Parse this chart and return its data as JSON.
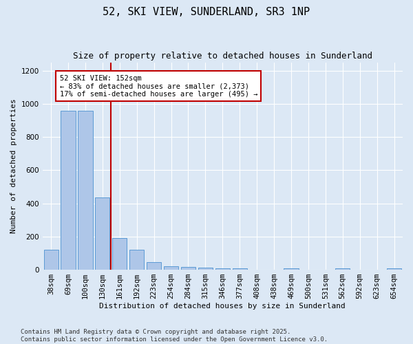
{
  "title": "52, SKI VIEW, SUNDERLAND, SR3 1NP",
  "subtitle": "Size of property relative to detached houses in Sunderland",
  "xlabel": "Distribution of detached houses by size in Sunderland",
  "ylabel": "Number of detached properties",
  "categories": [
    "38sqm",
    "69sqm",
    "100sqm",
    "130sqm",
    "161sqm",
    "192sqm",
    "223sqm",
    "254sqm",
    "284sqm",
    "315sqm",
    "346sqm",
    "377sqm",
    "408sqm",
    "438sqm",
    "469sqm",
    "500sqm",
    "531sqm",
    "562sqm",
    "592sqm",
    "623sqm",
    "654sqm"
  ],
  "values": [
    120,
    960,
    960,
    435,
    190,
    120,
    45,
    20,
    18,
    13,
    10,
    10,
    0,
    0,
    8,
    0,
    0,
    8,
    0,
    0,
    8
  ],
  "bar_color": "#aec6e8",
  "bar_edge_color": "#5b9bd5",
  "vline_color": "#c00000",
  "vline_index": 3.5,
  "annotation_text": "52 SKI VIEW: 152sqm\n← 83% of detached houses are smaller (2,373)\n17% of semi-detached houses are larger (495) →",
  "annotation_box_color": "#ffffff",
  "annotation_box_edge_color": "#c00000",
  "ylim": [
    0,
    1250
  ],
  "yticks": [
    0,
    200,
    400,
    600,
    800,
    1000,
    1200
  ],
  "background_color": "#dce8f5",
  "footer_text": "Contains HM Land Registry data © Crown copyright and database right 2025.\nContains public sector information licensed under the Open Government Licence v3.0.",
  "title_fontsize": 11,
  "subtitle_fontsize": 9,
  "axis_label_fontsize": 8,
  "tick_fontsize": 7.5,
  "annotation_fontsize": 7.5,
  "footer_fontsize": 6.5
}
